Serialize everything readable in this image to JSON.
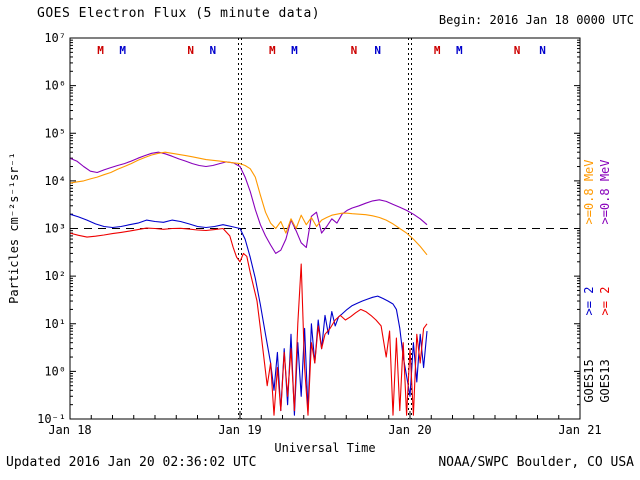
{
  "header": {
    "title": "GOES Electron Flux (5 minute data)",
    "begin": "Begin: 2016 Jan 18 0000 UTC"
  },
  "footer": {
    "updated": "Updated 2016 Jan 20 02:36:02 UTC",
    "source": "NOAA/SWPC Boulder, CO USA"
  },
  "legend": {
    "inner": {
      "satellite": "GOES15",
      "e08_label": ">=0.8 MeV",
      "e2_label": ">= 2",
      "e08_color": "#ff9900",
      "e2_color": "#0000cc"
    },
    "outer": {
      "satellite": "GOES13",
      "e08_label": ">=0.8 MeV",
      "e2_label": ">= 2",
      "e08_color": "#8800bb",
      "e2_color": "#ee0000"
    }
  },
  "chart_data": {
    "type": "line",
    "title": "GOES Electron Flux (5 minute data)",
    "xlabel": "Universal Time",
    "ylabel": "Particles cm⁻²s⁻¹sr⁻¹",
    "x_ticks": [
      "Jan 18",
      "Jan 19",
      "Jan 20",
      "Jan 21"
    ],
    "x_range_days": [
      0,
      3
    ],
    "y_scale": "log",
    "y_log_range": [
      -1,
      7
    ],
    "y_tick_labels": [
      "10⁻¹",
      "10⁰",
      "10¹",
      "10²",
      "10³",
      "10⁴",
      "10⁵",
      "10⁶",
      "10⁷"
    ],
    "threshold_flux": 1000,
    "day_boundaries": [
      1,
      2
    ],
    "minor_x_tick_hours": 3,
    "markers": [
      {
        "label": "M",
        "color": "#cc0000",
        "t": 0.18
      },
      {
        "label": "M",
        "color": "#0000cc",
        "t": 0.31
      },
      {
        "label": "N",
        "color": "#cc0000",
        "t": 0.71
      },
      {
        "label": "N",
        "color": "#0000cc",
        "t": 0.84
      },
      {
        "label": "M",
        "color": "#cc0000",
        "t": 1.19
      },
      {
        "label": "M",
        "color": "#0000cc",
        "t": 1.32
      },
      {
        "label": "N",
        "color": "#cc0000",
        "t": 1.67
      },
      {
        "label": "N",
        "color": "#0000cc",
        "t": 1.81
      },
      {
        "label": "M",
        "color": "#cc0000",
        "t": 2.16
      },
      {
        "label": "M",
        "color": "#0000cc",
        "t": 2.29
      },
      {
        "label": "N",
        "color": "#cc0000",
        "t": 2.63
      },
      {
        "label": "N",
        "color": "#0000cc",
        "t": 2.78
      }
    ],
    "series": [
      {
        "name": "GOES13 >=0.8 MeV",
        "color": "#8800bb",
        "t": [
          0,
          0.04,
          0.08,
          0.12,
          0.16,
          0.2,
          0.24,
          0.28,
          0.32,
          0.36,
          0.4,
          0.44,
          0.48,
          0.52,
          0.56,
          0.6,
          0.64,
          0.68,
          0.72,
          0.76,
          0.8,
          0.84,
          0.88,
          0.92,
          0.96,
          1,
          1.03,
          1.06,
          1.09,
          1.12,
          1.15,
          1.18,
          1.21,
          1.24,
          1.27,
          1.3,
          1.33,
          1.36,
          1.39,
          1.42,
          1.45,
          1.48,
          1.51,
          1.54,
          1.57,
          1.6,
          1.63,
          1.66,
          1.7,
          1.74,
          1.78,
          1.82,
          1.86,
          1.9,
          1.94,
          1.98,
          2.02,
          2.06,
          2.1
        ],
        "v": [
          30000,
          26000,
          20000,
          16000,
          15000,
          17000,
          19000,
          21000,
          23000,
          26000,
          30000,
          34000,
          38000,
          40000,
          37000,
          33000,
          29000,
          26000,
          23000,
          21000,
          20000,
          21000,
          23000,
          25000,
          24000,
          20000,
          12000,
          6000,
          2500,
          1200,
          700,
          450,
          300,
          350,
          600,
          1500,
          900,
          500,
          400,
          1800,
          2200,
          800,
          1100,
          1600,
          1300,
          2000,
          2400,
          2700,
          3000,
          3400,
          3800,
          4000,
          3700,
          3200,
          2800,
          2400,
          2000,
          1600,
          1200
        ]
      },
      {
        "name": "GOES15 >=0.8 MeV",
        "color": "#ff9900",
        "t": [
          0,
          0.04,
          0.08,
          0.12,
          0.16,
          0.2,
          0.24,
          0.28,
          0.32,
          0.36,
          0.4,
          0.44,
          0.48,
          0.52,
          0.56,
          0.6,
          0.64,
          0.68,
          0.72,
          0.76,
          0.8,
          0.84,
          0.88,
          0.92,
          0.96,
          1,
          1.03,
          1.06,
          1.09,
          1.12,
          1.15,
          1.18,
          1.21,
          1.24,
          1.27,
          1.3,
          1.33,
          1.36,
          1.39,
          1.42,
          1.45,
          1.48,
          1.51,
          1.54,
          1.57,
          1.6,
          1.63,
          1.66,
          1.7,
          1.74,
          1.78,
          1.82,
          1.86,
          1.9,
          1.94,
          1.98,
          2.02,
          2.06,
          2.1
        ],
        "v": [
          9000,
          9500,
          10000,
          11000,
          12000,
          13500,
          15000,
          17500,
          20000,
          23000,
          27000,
          31000,
          35000,
          38000,
          40000,
          38000,
          36000,
          34000,
          32000,
          30000,
          28000,
          27000,
          26000,
          25000,
          24000,
          23000,
          21000,
          18000,
          12000,
          5000,
          2200,
          1300,
          1000,
          1400,
          800,
          1600,
          1000,
          1900,
          1200,
          1700,
          1100,
          1500,
          1700,
          1900,
          2000,
          2100,
          2100,
          2050,
          2000,
          1950,
          1850,
          1700,
          1500,
          1250,
          1000,
          800,
          600,
          420,
          280
        ]
      },
      {
        "name": "GOES15 >= 2 MeV",
        "color": "#0000cc",
        "t": [
          0,
          0.05,
          0.1,
          0.15,
          0.2,
          0.25,
          0.3,
          0.35,
          0.4,
          0.45,
          0.5,
          0.55,
          0.6,
          0.65,
          0.7,
          0.75,
          0.8,
          0.85,
          0.9,
          0.95,
          1,
          1.03,
          1.06,
          1.09,
          1.12,
          1.15,
          1.18,
          1.2,
          1.22,
          1.24,
          1.26,
          1.28,
          1.3,
          1.32,
          1.34,
          1.36,
          1.38,
          1.4,
          1.42,
          1.44,
          1.46,
          1.48,
          1.5,
          1.52,
          1.54,
          1.56,
          1.58,
          1.6,
          1.63,
          1.66,
          1.69,
          1.72,
          1.75,
          1.78,
          1.81,
          1.84,
          1.87,
          1.9,
          1.92,
          1.94,
          1.96,
          1.98,
          2,
          2.02,
          2.04,
          2.06,
          2.08,
          2.1
        ],
        "v": [
          2000,
          1750,
          1500,
          1250,
          1100,
          1050,
          1100,
          1200,
          1300,
          1500,
          1400,
          1350,
          1500,
          1400,
          1250,
          1100,
          1050,
          1100,
          1200,
          1100,
          1000,
          600,
          250,
          90,
          25,
          6,
          1.5,
          0.4,
          2.5,
          0.15,
          3,
          0.2,
          6,
          0.12,
          4,
          0.3,
          8,
          0.15,
          10,
          1.5,
          12,
          3,
          15,
          6,
          18,
          9,
          14,
          16,
          20,
          24,
          27,
          30,
          33,
          36,
          38,
          34,
          30,
          26,
          20,
          8,
          2,
          0.8,
          0.3,
          4,
          0.6,
          6,
          1.2,
          7
        ]
      },
      {
        "name": "GOES13 >= 2 MeV",
        "color": "#ee0000",
        "t": [
          0,
          0.05,
          0.1,
          0.15,
          0.2,
          0.25,
          0.3,
          0.35,
          0.4,
          0.45,
          0.5,
          0.55,
          0.6,
          0.65,
          0.7,
          0.75,
          0.8,
          0.85,
          0.9,
          0.94,
          0.96,
          0.98,
          1,
          1.02,
          1.04,
          1.06,
          1.08,
          1.1,
          1.12,
          1.14,
          1.16,
          1.18,
          1.2,
          1.22,
          1.24,
          1.26,
          1.28,
          1.3,
          1.32,
          1.34,
          1.36,
          1.38,
          1.4,
          1.42,
          1.44,
          1.46,
          1.48,
          1.5,
          1.53,
          1.56,
          1.59,
          1.62,
          1.65,
          1.68,
          1.71,
          1.74,
          1.77,
          1.8,
          1.83,
          1.86,
          1.88,
          1.9,
          1.92,
          1.94,
          1.96,
          1.98,
          2,
          2.02,
          2.04,
          2.06,
          2.08,
          2.1
        ],
        "v": [
          800,
          720,
          660,
          690,
          730,
          780,
          830,
          880,
          950,
          1020,
          1000,
          960,
          1000,
          1010,
          970,
          930,
          910,
          950,
          1000,
          700,
          400,
          250,
          200,
          300,
          260,
          120,
          60,
          30,
          8,
          2,
          0.5,
          1.5,
          0.12,
          1.2,
          0.15,
          2.5,
          0.3,
          3,
          0.15,
          10,
          180,
          1.2,
          0.12,
          4,
          1.5,
          9,
          3,
          6,
          8,
          12,
          15,
          12,
          14,
          17,
          20,
          18,
          15,
          12,
          9,
          2,
          7,
          0.12,
          5,
          0.15,
          4,
          0.12,
          3,
          0.12,
          6,
          1.5,
          8,
          10
        ]
      }
    ]
  }
}
